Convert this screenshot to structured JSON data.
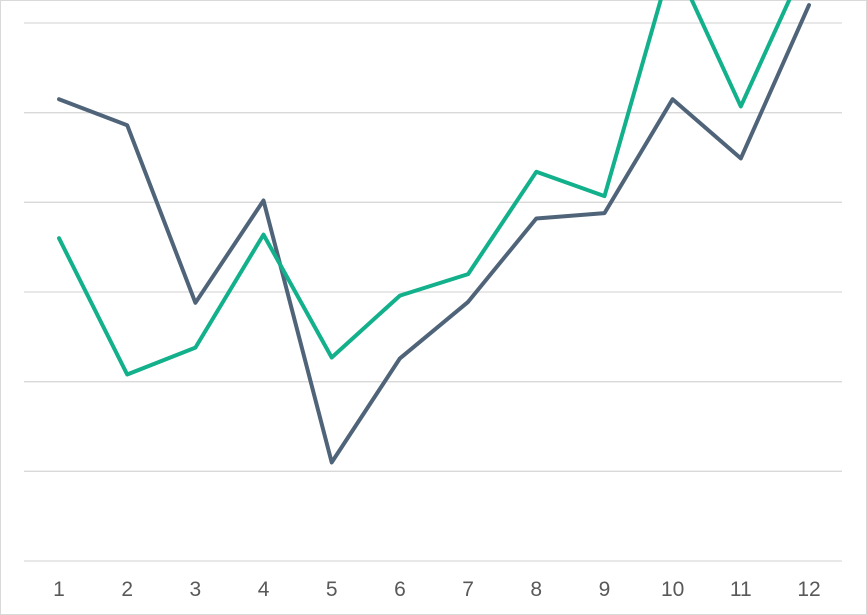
{
  "chart_data": {
    "type": "line",
    "categories": [
      "1",
      "2",
      "3",
      "4",
      "5",
      "6",
      "7",
      "8",
      "9",
      "10",
      "11",
      "12"
    ],
    "series": [
      {
        "color": "#4f6479",
        "values": [
          4.15,
          3.86,
          1.88,
          3.02,
          0.1,
          1.26,
          1.89,
          2.82,
          2.88,
          4.15,
          3.49,
          5.2
        ]
      },
      {
        "color": "#13b08c",
        "values": [
          2.6,
          1.08,
          1.38,
          2.64,
          1.27,
          1.96,
          2.2,
          3.34,
          3.07,
          5.72,
          4.07,
          5.74
        ]
      }
    ],
    "ylim": [
      -1,
      5
    ],
    "grid": true,
    "legend": "none"
  }
}
